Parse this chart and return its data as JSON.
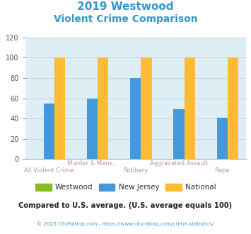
{
  "title_line1": "2019 Westwood",
  "title_line2": "Violent Crime Comparison",
  "title_color": "#3399cc",
  "categories": [
    "All Violent Crime",
    "Murder & Mans...",
    "Robbery",
    "Aggravated Assault",
    "Rape"
  ],
  "top_labels": [
    "",
    "Murder & Mans...",
    "",
    "Aggravated Assault",
    ""
  ],
  "bot_labels": [
    "All Violent Crime",
    "",
    "Robbery",
    "",
    "Rape"
  ],
  "westwood": [
    0,
    0,
    0,
    0,
    0
  ],
  "new_jersey": [
    55,
    60,
    80,
    49,
    41
  ],
  "national": [
    100,
    100,
    100,
    100,
    100
  ],
  "westwood_color": "#88bb22",
  "nj_color": "#4499dd",
  "national_color": "#ffbb33",
  "ylim": [
    0,
    120
  ],
  "yticks": [
    0,
    20,
    40,
    60,
    80,
    100,
    120
  ],
  "plot_bg": "#ddeef5",
  "grid_color": "#c0d4e0",
  "axis_label_color": "#bb9999",
  "legend_labels": [
    "Westwood",
    "New Jersey",
    "National"
  ],
  "footer_text": "Compared to U.S. average. (U.S. average equals 100)",
  "footer_color": "#222222",
  "copyright_text": "© 2025 CityRating.com - https://www.cityrating.com/crime-statistics/",
  "copyright_color": "#4499dd",
  "bar_width": 0.25
}
